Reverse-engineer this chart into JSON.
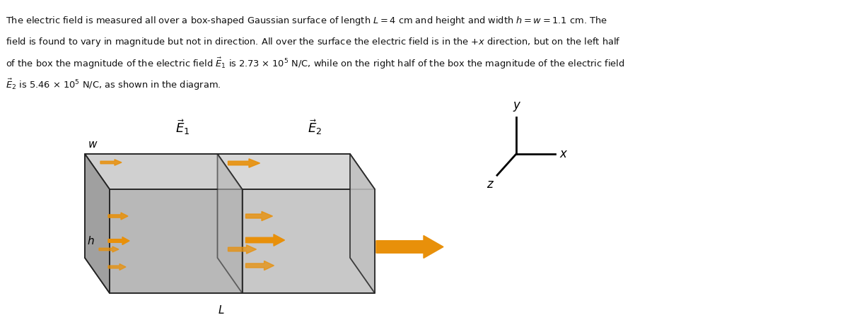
{
  "bg": "#ffffff",
  "text_color": "#111111",
  "box_edge": "#222222",
  "face_left_side": "#a0a0a0",
  "face_right_side": "#c0c0c0",
  "face_front_left": "#b8b8b8",
  "face_front_right": "#c8c8c8",
  "face_top_left": "#d0d0d0",
  "face_top_right": "#d8d8d8",
  "face_back": "#b0b0b0",
  "face_bottom": "#909090",
  "arrow_color": "#e8900a",
  "fig_w": 11.95,
  "fig_h": 4.63,
  "text_lines": [
    "The electric field is measured all over a box-shaped Gaussian surface of length $L = 4$ cm and height and width $h = w = 1.1$ cm. The",
    "field is found to vary in magnitude but not in direction. All over the surface the electric field is in the $+x$ direction, but on the left half",
    "of the box the magnitude of the electric field $\\vec{E}_1$ is 2.73 $\\times$ 10$^5$ N/C, while on the right half of the box the magnitude of the electric field",
    "$\\vec{E}_2$ is 5.46 $\\times$ 10$^5$ N/C, as shown in the diagram."
  ]
}
